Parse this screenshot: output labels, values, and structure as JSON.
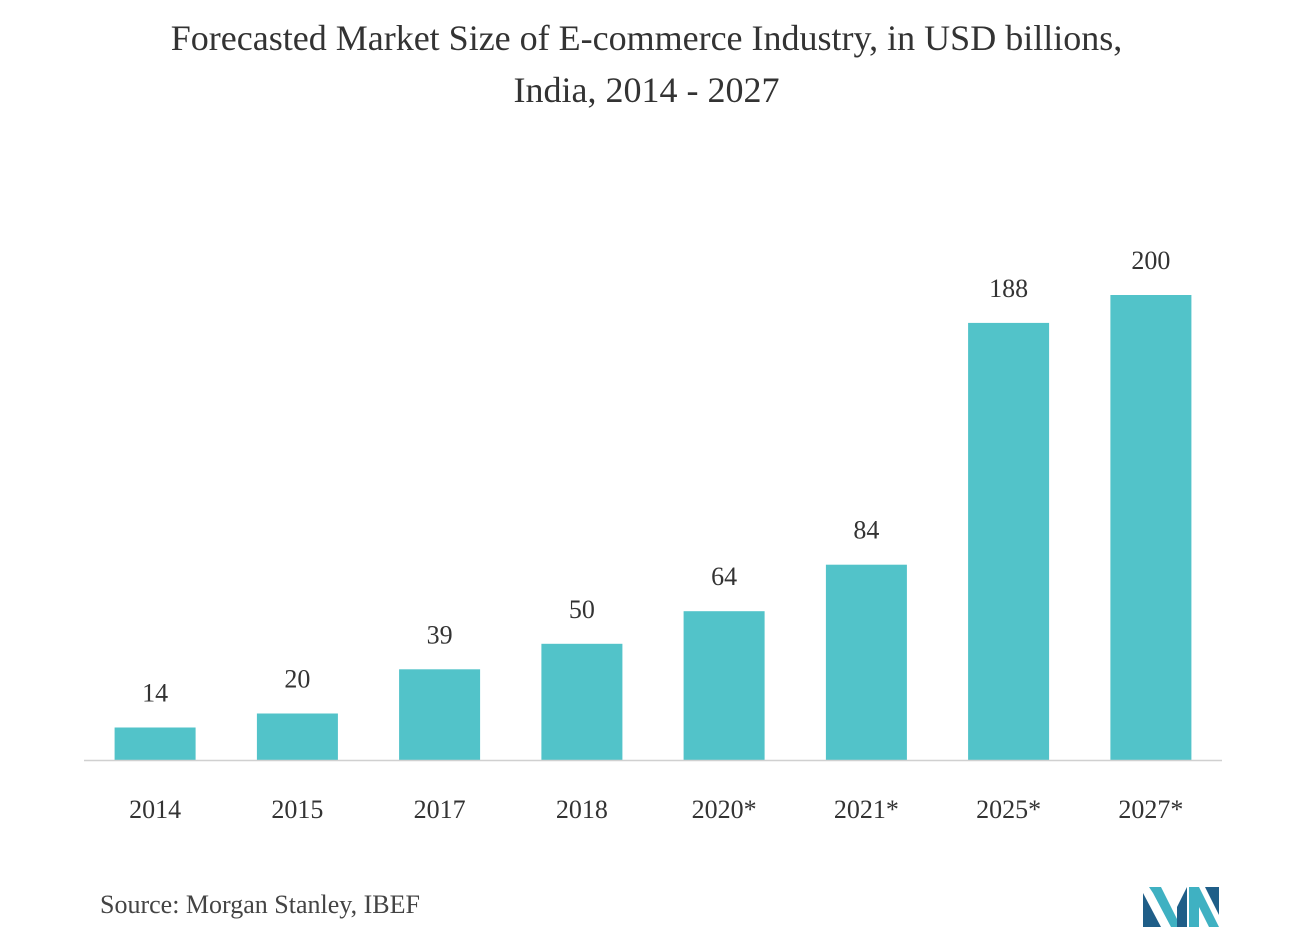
{
  "title_lines": [
    "Forecasted Market Size of E-commerce Industry, in USD billions,",
    "India, 2014 - 2027"
  ],
  "source": "Source: Morgan Stanley, IBEF",
  "logo": {
    "name": "mordor-intelligence-logo-icon",
    "colors": [
      "#1f5e88",
      "#3fb1c2"
    ]
  },
  "colors": {
    "bar": "#52c3c9",
    "axis": "#d0d0d0",
    "text": "#333333"
  },
  "chart_data": {
    "type": "bar",
    "title": "Forecasted Market Size of E-commerce Industry, in USD billions, India, 2014 - 2027",
    "categories": [
      "2014",
      "2015",
      "2017",
      "2018",
      "2020*",
      "2021*",
      "2025*",
      "2027*"
    ],
    "values": [
      14,
      20,
      39,
      50,
      64,
      84,
      188,
      200
    ],
    "data_labels": [
      "14",
      "20",
      "39",
      "50",
      "64",
      "84",
      "188",
      "200"
    ],
    "xlabel": "",
    "ylabel": "",
    "ylim": [
      0,
      200
    ],
    "grid": false,
    "legend": "none"
  }
}
